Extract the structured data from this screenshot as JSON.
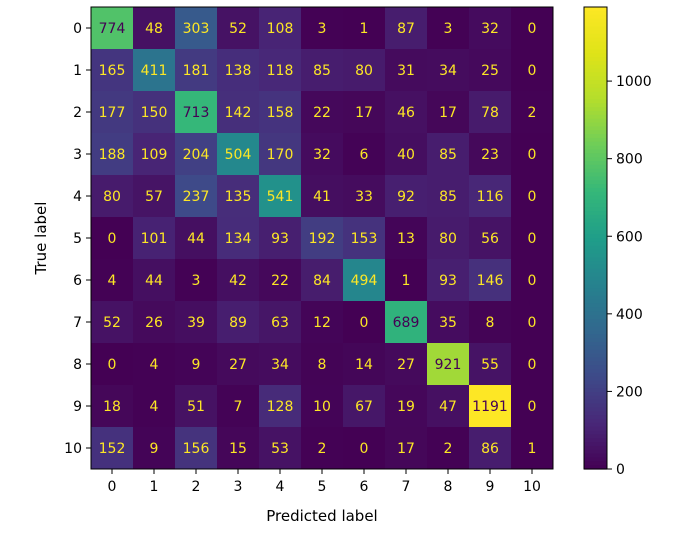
{
  "chart_data": {
    "type": "heatmap",
    "title": "",
    "xlabel": "Predicted label",
    "ylabel": "True label",
    "x_categories": [
      "0",
      "1",
      "2",
      "3",
      "4",
      "5",
      "6",
      "7",
      "8",
      "9",
      "10"
    ],
    "y_categories": [
      "0",
      "1",
      "2",
      "3",
      "4",
      "5",
      "6",
      "7",
      "8",
      "9",
      "10"
    ],
    "values": [
      [
        774,
        48,
        303,
        52,
        108,
        3,
        1,
        87,
        3,
        32,
        0
      ],
      [
        165,
        411,
        181,
        138,
        118,
        85,
        80,
        31,
        34,
        25,
        0
      ],
      [
        177,
        150,
        713,
        142,
        158,
        22,
        17,
        46,
        17,
        78,
        2
      ],
      [
        188,
        109,
        204,
        504,
        170,
        32,
        6,
        40,
        85,
        23,
        0
      ],
      [
        80,
        57,
        237,
        135,
        541,
        41,
        33,
        92,
        85,
        116,
        0
      ],
      [
        0,
        101,
        44,
        134,
        93,
        192,
        153,
        13,
        80,
        56,
        0
      ],
      [
        4,
        44,
        3,
        42,
        22,
        84,
        494,
        1,
        93,
        146,
        0
      ],
      [
        52,
        26,
        39,
        89,
        63,
        12,
        0,
        689,
        35,
        8,
        0
      ],
      [
        0,
        4,
        9,
        27,
        34,
        8,
        14,
        27,
        921,
        55,
        0
      ],
      [
        18,
        4,
        51,
        7,
        128,
        10,
        67,
        19,
        47,
        1191,
        0
      ],
      [
        152,
        9,
        156,
        15,
        53,
        2,
        0,
        17,
        2,
        86,
        1
      ]
    ],
    "colormap": "viridis",
    "color_range": [
      0,
      1191
    ],
    "colorbar_ticks": [
      "0",
      "200",
      "400",
      "600",
      "800",
      "1000"
    ],
    "colorbar_tick_values": [
      0,
      200,
      400,
      600,
      800,
      1000
    ],
    "text_color_dark_cells": "#fde725",
    "text_color_light_cells": "#440154",
    "grid": false,
    "legend": "colorbar-right"
  }
}
